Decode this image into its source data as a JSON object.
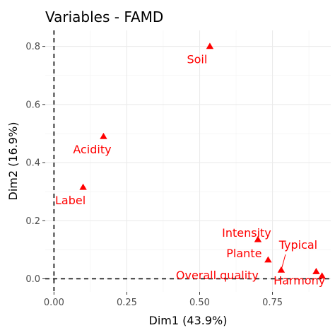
{
  "chart_data": {
    "type": "scatter",
    "title": "Variables - FAMD",
    "xlabel": "Dim1 (43.9%)",
    "ylabel": "Dim2 (16.9%)",
    "xlim": [
      -0.03,
      0.95
    ],
    "ylim": [
      -0.045,
      0.855
    ],
    "x_ticks": [
      0.0,
      0.25,
      0.5,
      0.75
    ],
    "x_tick_labels": [
      "0.00",
      "0.25",
      "0.50",
      "0.75"
    ],
    "y_ticks": [
      0.0,
      0.2,
      0.4,
      0.6,
      0.8
    ],
    "y_tick_labels": [
      "0.0",
      "0.2",
      "0.4",
      "0.6",
      "0.8"
    ],
    "grid": true,
    "reference_lines": {
      "x": 0,
      "y": 0,
      "style": "dashed"
    },
    "marker": "triangle",
    "color": "#ff0000",
    "points": [
      {
        "label": "Soil",
        "x": 0.535,
        "y": 0.8
      },
      {
        "label": "Acidity",
        "x": 0.17,
        "y": 0.49
      },
      {
        "label": "Label",
        "x": 0.1,
        "y": 0.315
      },
      {
        "label": "Intensity",
        "x": 0.7,
        "y": 0.135
      },
      {
        "label": "Plante",
        "x": 0.735,
        "y": 0.065
      },
      {
        "label": "Typical",
        "x": 0.78,
        "y": 0.03
      },
      {
        "label": "Overall.quality",
        "x": 0.9,
        "y": 0.025
      },
      {
        "label": "Harmony",
        "x": 0.92,
        "y": 0.01
      }
    ]
  }
}
